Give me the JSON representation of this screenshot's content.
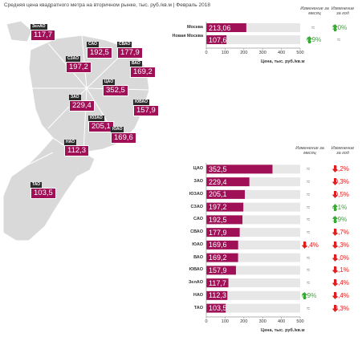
{
  "title": "Средняя цена квадратного метра на вторичном рынке, тыс. руб./кв.м | Февраль 2018",
  "colors": {
    "bar": "#a01056",
    "bar_bg": "#e7e7e7",
    "map": "#d9d9d9",
    "down": "#e02020",
    "up": "#3aaa35"
  },
  "map_labels": [
    {
      "district": "ЗелАО",
      "value": "117,7"
    },
    {
      "district": "САО",
      "value": "192,5"
    },
    {
      "district": "СВАО",
      "value": "177,9"
    },
    {
      "district": "СЗАО",
      "value": "197,2"
    },
    {
      "district": "ВАО",
      "value": "169,2"
    },
    {
      "district": "ЦАО",
      "value": "352,5"
    },
    {
      "district": "ЗАО",
      "value": "229,4"
    },
    {
      "district": "ЮВАО",
      "value": "157,9"
    },
    {
      "district": "ЮЗАО",
      "value": "205,1"
    },
    {
      "district": "ЮАО",
      "value": "169,6"
    },
    {
      "district": "НАО",
      "value": "112,3"
    },
    {
      "district": "ТАО",
      "value": "103,5"
    }
  ],
  "chart_data": [
    {
      "type": "bar",
      "orientation": "horizontal",
      "categories": [
        "Москва",
        "Новая Москва"
      ],
      "values": [
        213.06,
        107.6
      ],
      "value_labels": [
        "213,06",
        "107,6"
      ],
      "headers": {
        "month": "Изменение за месяц",
        "year": "Изменение за год"
      },
      "month_change": [
        {
          "text": "≈",
          "dir": "flat"
        },
        {
          "text": "0,9%",
          "dir": "up"
        }
      ],
      "year_change": [
        {
          "text": "2,0%",
          "dir": "up"
        },
        {
          "text": "≈",
          "dir": "flat"
        }
      ],
      "xlim": [
        0,
        500
      ],
      "ticks": [
        "0",
        "100",
        "200",
        "300",
        "400",
        "500"
      ],
      "xlabel": "Цена, тыс. руб./кв.м"
    },
    {
      "type": "bar",
      "orientation": "horizontal",
      "categories": [
        "ЦАО",
        "ЗАО",
        "ЮЗАО",
        "СЗАО",
        "САО",
        "СВАО",
        "ЮАО",
        "ВАО",
        "ЮВАО",
        "ЗелАО",
        "НАО",
        "ТАО"
      ],
      "values": [
        352.5,
        229.4,
        205.1,
        197.2,
        192.5,
        177.9,
        169.6,
        169.2,
        157.9,
        117.7,
        112.3,
        103.5
      ],
      "value_labels": [
        "352,5",
        "229,4",
        "205,1",
        "197,2",
        "192,5",
        "177,9",
        "169,6",
        "169,2",
        "157,9",
        "117,7",
        "112,3",
        "103,5"
      ],
      "headers": {
        "month": "Изменение за месяц",
        "year": "Изменение за год"
      },
      "month_change": [
        {
          "text": "≈",
          "dir": "flat"
        },
        {
          "text": "≈",
          "dir": "flat"
        },
        {
          "text": "≈",
          "dir": "flat"
        },
        {
          "text": "≈",
          "dir": "flat"
        },
        {
          "text": "≈",
          "dir": "flat"
        },
        {
          "text": "≈",
          "dir": "flat"
        },
        {
          "text": "-1,4%",
          "dir": "down"
        },
        {
          "text": "≈",
          "dir": "flat"
        },
        {
          "text": "≈",
          "dir": "flat"
        },
        {
          "text": "≈",
          "dir": "flat"
        },
        {
          "text": "0,9%",
          "dir": "up"
        },
        {
          "text": "≈",
          "dir": "flat"
        }
      ],
      "year_change": [
        {
          "text": "-1,2%",
          "dir": "down"
        },
        {
          "text": "-0,3%",
          "dir": "down"
        },
        {
          "text": "-0,5%",
          "dir": "down"
        },
        {
          "text": "4,1%",
          "dir": "up"
        },
        {
          "text": "1,9%",
          "dir": "up"
        },
        {
          "text": "-1,7%",
          "dir": "down"
        },
        {
          "text": "-1,3%",
          "dir": "down"
        },
        {
          "text": "-1,0%",
          "dir": "down"
        },
        {
          "text": "-1,1%",
          "dir": "down"
        },
        {
          "text": "-1,4%",
          "dir": "down"
        },
        {
          "text": "-1,4%",
          "dir": "down"
        },
        {
          "text": "-3,3%",
          "dir": "down"
        }
      ],
      "xlim": [
        0,
        500
      ],
      "ticks": [
        "0",
        "100",
        "200",
        "300",
        "400",
        "500"
      ],
      "xlabel": "Цена, тыс. руб./кв.м"
    }
  ]
}
